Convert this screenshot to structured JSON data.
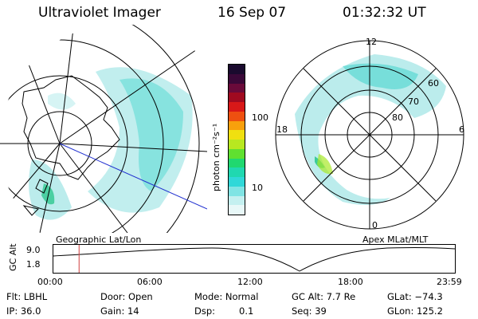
{
  "header": {
    "instrument": "Ultraviolet Imager",
    "date": "16 Sep 07",
    "time": "01:32:32 UT"
  },
  "left_panel": {
    "label": "Geographic Lat/Lon"
  },
  "right_panel": {
    "label": "Apex MLat/MLT",
    "mlt_labels": {
      "top": "12",
      "left": "18",
      "right": "6",
      "bottom": "0"
    },
    "mlat_labels": [
      "60",
      "70",
      "80"
    ]
  },
  "colorbar": {
    "unit_label": "photon cm⁻²s⁻¹",
    "tick_labels": [
      "100",
      "10"
    ],
    "colors": [
      "#1a0a2e",
      "#3a0838",
      "#6a0a3a",
      "#a00a20",
      "#d81818",
      "#ee5010",
      "#f8a00c",
      "#f0e010",
      "#b8e820",
      "#60e030",
      "#20d870",
      "#20d8b0",
      "#30d8d8",
      "#80e4e4",
      "#c4f0f0",
      "#e8f8f8"
    ]
  },
  "gc_alt_plot": {
    "ylabel": "GC Alt",
    "y_ticks": [
      "9.0",
      "1.8"
    ],
    "x_ticks": [
      "00:00",
      "06:00",
      "12:00",
      "18:00",
      "23:59"
    ],
    "marker_time_fraction": 0.064,
    "marker_color": "#d04040"
  },
  "info": {
    "filter": "Flt: LBHL",
    "door": "Door: Open",
    "mode": "Mode: Normal",
    "gc_alt": "GC Alt: 7.7 Re",
    "glat": "GLat: −74.3",
    "ip": "IP: 36.0",
    "gain": "Gain: 14",
    "dsp_label": "Dsp:",
    "dsp_value": "0.1",
    "seq": "Seq: 39",
    "glon": "GLon: 125.2"
  }
}
